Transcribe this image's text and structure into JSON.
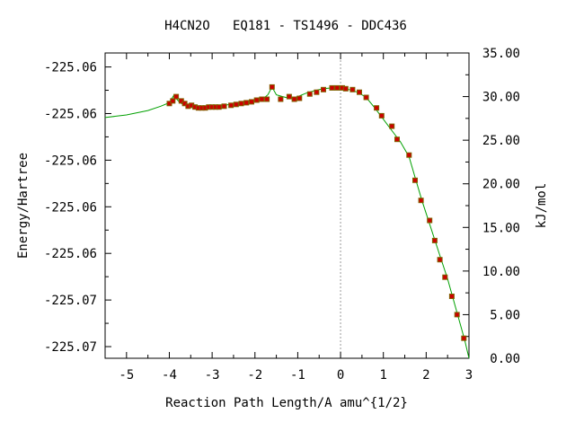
{
  "chart_data": {
    "type": "line",
    "title": "H4CN2O   EQ181 - TS1496 - DDC436",
    "xlabel": "Reaction Path Length/A amu^{1/2}",
    "ylabel_left": "Energy/Hartree",
    "ylabel_right": "kJ/mol",
    "xlim": [
      -5.5,
      3.0
    ],
    "ylim_left": [
      -225.0725,
      -225.0594
    ],
    "ylim_right": [
      0.0,
      35.0
    ],
    "x_ticks": [
      "-5",
      "-4",
      "-3",
      "-2",
      "-1",
      "0",
      "1",
      "2",
      "3"
    ],
    "x_tick_values": [
      -5,
      -4,
      -3,
      -2,
      -1,
      0,
      1,
      2,
      3
    ],
    "y_left_tick_labels": [
      "-225.06",
      "-225.06",
      "-225.06",
      "-225.06",
      "-225.06",
      "-225.07",
      "-225.07"
    ],
    "y_right_ticks": [
      "35.00",
      "30.00",
      "25.00",
      "20.00",
      "15.00",
      "10.00",
      "5.00",
      "0.00"
    ],
    "y_right_tick_values": [
      35,
      30,
      25,
      20,
      15,
      10,
      5,
      0
    ],
    "ts_line_x": 0,
    "curve": {
      "x": [
        -5.5,
        -5.0,
        -4.5,
        -4.2,
        -4.0,
        -3.9,
        -3.75,
        -3.6,
        -3.4,
        -3.2,
        -3.0,
        -2.8,
        -2.6,
        -2.4,
        -2.2,
        -2.0,
        -1.85,
        -1.7,
        -1.6,
        -1.5,
        -1.35,
        -1.2,
        -1.0,
        -0.8,
        -0.6,
        -0.4,
        -0.2,
        0.0,
        0.2,
        0.4,
        0.6,
        0.8,
        1.0,
        1.2,
        1.4,
        1.6,
        1.75,
        1.9,
        2.1,
        2.3,
        2.5,
        2.7,
        2.9,
        3.0
      ],
      "y": [
        27.6,
        27.9,
        28.4,
        28.9,
        29.3,
        30.1,
        29.3,
        28.9,
        28.7,
        28.7,
        28.8,
        28.9,
        29.1,
        29.2,
        29.4,
        29.6,
        29.6,
        30.2,
        31.1,
        30.2,
        30.0,
        29.8,
        30.0,
        30.4,
        30.7,
        30.9,
        31.0,
        31.0,
        30.8,
        30.5,
        29.9,
        28.7,
        27.4,
        26.1,
        24.8,
        23.1,
        20.6,
        18.1,
        15.1,
        12.1,
        9.1,
        5.6,
        2.1,
        0.0
      ]
    },
    "points": {
      "x": [
        -4.0,
        -3.92,
        -3.84,
        -3.72,
        -3.64,
        -3.56,
        -3.48,
        -3.4,
        -3.32,
        -3.24,
        -3.16,
        -3.08,
        -3.0,
        -2.92,
        -2.84,
        -2.72,
        -2.56,
        -2.44,
        -2.32,
        -2.2,
        -2.08,
        -1.96,
        -1.84,
        -1.72,
        -1.6,
        -1.4,
        -1.2,
        -1.08,
        -0.96,
        -0.72,
        -0.56,
        -0.4,
        -0.2,
        -0.08,
        0.04,
        0.12,
        0.28,
        0.44,
        0.6,
        0.84,
        0.96,
        1.2,
        1.32,
        1.6,
        1.74,
        1.88,
        2.08,
        2.2,
        2.32,
        2.44,
        2.6,
        2.72,
        2.88
      ],
      "y": [
        29.2,
        29.5,
        30.0,
        29.5,
        29.2,
        28.9,
        29.0,
        28.8,
        28.7,
        28.7,
        28.7,
        28.8,
        28.8,
        28.8,
        28.8,
        28.9,
        29.0,
        29.1,
        29.2,
        29.3,
        29.4,
        29.6,
        29.7,
        29.7,
        31.1,
        29.7,
        30.0,
        29.7,
        29.8,
        30.3,
        30.5,
        30.8,
        31.0,
        31.0,
        31.0,
        30.9,
        30.8,
        30.5,
        29.9,
        28.7,
        27.8,
        26.6,
        25.1,
        23.3,
        20.4,
        18.1,
        15.8,
        13.5,
        11.3,
        9.3,
        7.1,
        5.0,
        2.3
      ]
    },
    "grid": false,
    "line_color": "#00a000",
    "point_fill": "#cc0000",
    "point_stroke": "#806000"
  }
}
